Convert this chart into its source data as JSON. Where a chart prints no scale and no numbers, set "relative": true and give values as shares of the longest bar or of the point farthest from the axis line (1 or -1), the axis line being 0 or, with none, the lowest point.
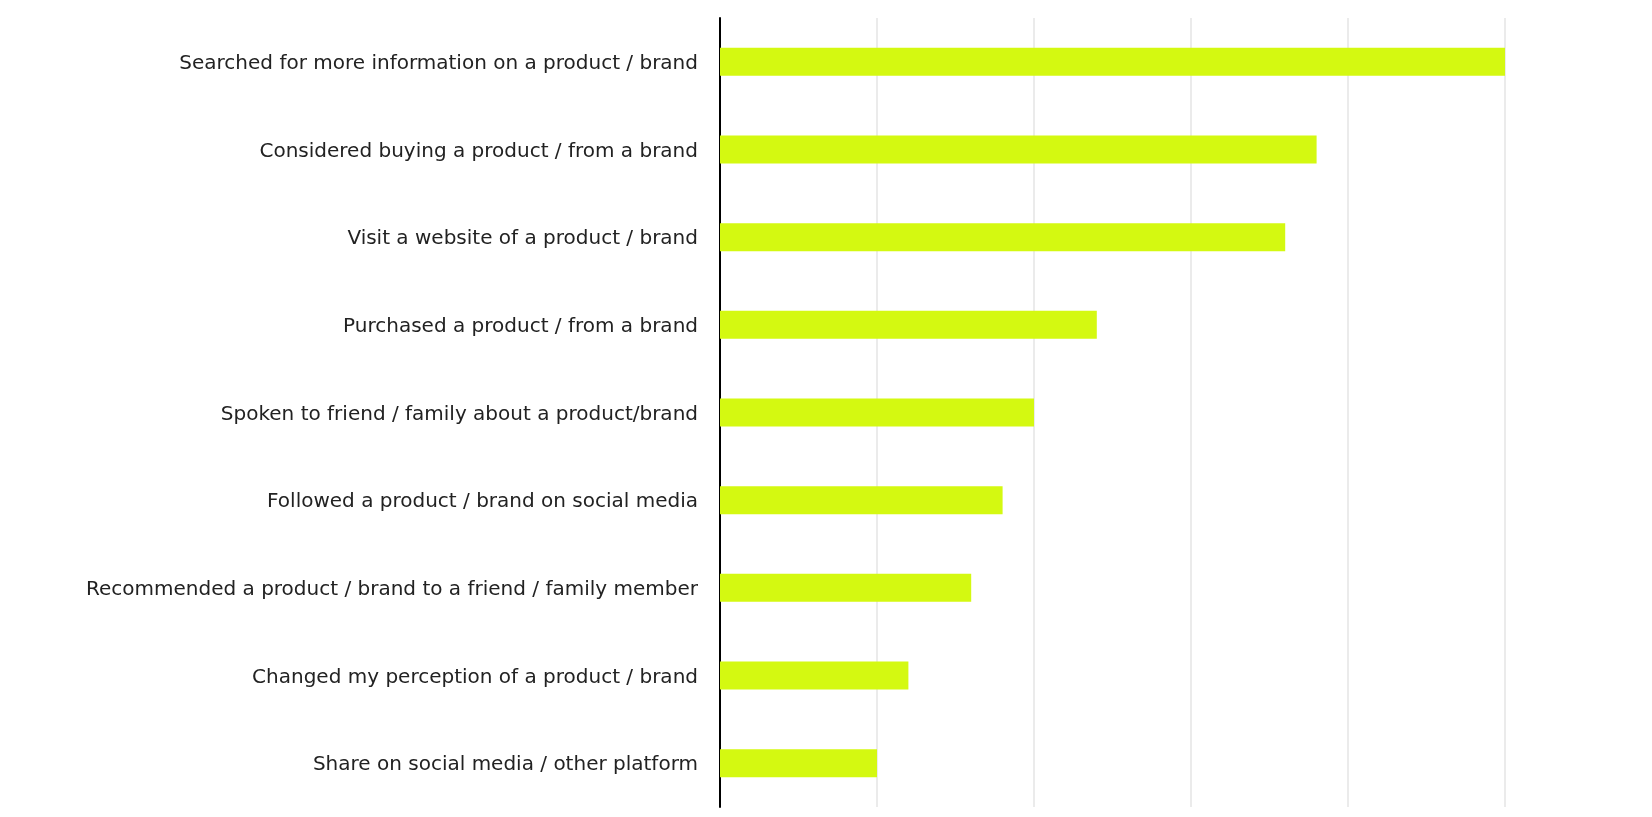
{
  "chart_data": {
    "type": "bar",
    "orientation": "horizontal",
    "relative": true,
    "grid": "x",
    "categories": [
      "Searched for more information on a product / brand",
      "Considered buying a product / from a brand",
      "Visit a website of a product / brand",
      "Purchased a product / from a brand",
      "Spoken to friend / family about a product/brand",
      "Followed a product / brand on social media",
      "Recommended a product / brand to a friend / family member",
      "Changed my perception of a product / brand",
      "Share on social media / other platform"
    ],
    "values": [
      1.0,
      0.76,
      0.72,
      0.48,
      0.4,
      0.36,
      0.32,
      0.24,
      0.2
    ],
    "color": "#d4f911"
  }
}
